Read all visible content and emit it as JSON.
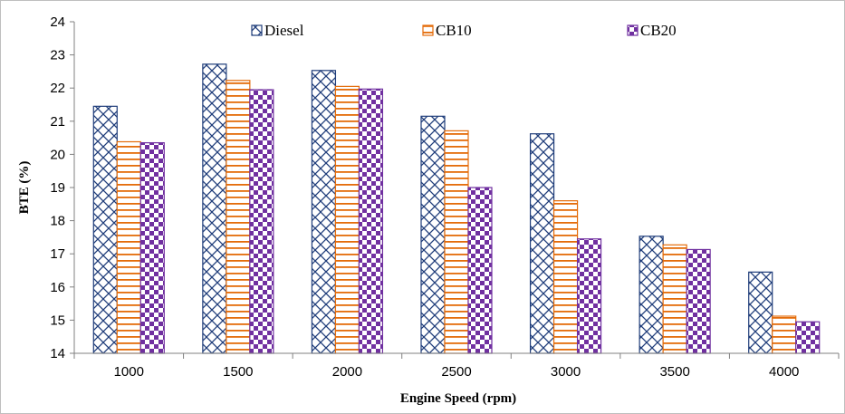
{
  "chart_data": {
    "type": "bar",
    "title": "",
    "xlabel": "Engine Speed (rpm)",
    "ylabel": "BTE (%)",
    "categories": [
      "1000",
      "1500",
      "2000",
      "2500",
      "3000",
      "3500",
      "4000"
    ],
    "ylim": [
      14,
      24
    ],
    "yticks": [
      14,
      15,
      16,
      17,
      18,
      19,
      20,
      21,
      22,
      23,
      24
    ],
    "grid": false,
    "legend_position": "top",
    "series": [
      {
        "name": "Diesel",
        "pattern": "diagonal-crosshatch",
        "color": "#1f3d7a",
        "values": [
          21.45,
          22.72,
          22.53,
          21.15,
          20.62,
          17.53,
          16.45
        ]
      },
      {
        "name": "CB10",
        "pattern": "horizontal-lines",
        "color": "#e46c0a",
        "values": [
          20.38,
          22.23,
          22.05,
          20.71,
          18.6,
          17.27,
          15.12
        ]
      },
      {
        "name": "CB20",
        "pattern": "checkerboard",
        "color": "#7030a0",
        "values": [
          20.35,
          21.95,
          21.97,
          19.0,
          17.45,
          17.13,
          14.95
        ]
      }
    ]
  }
}
